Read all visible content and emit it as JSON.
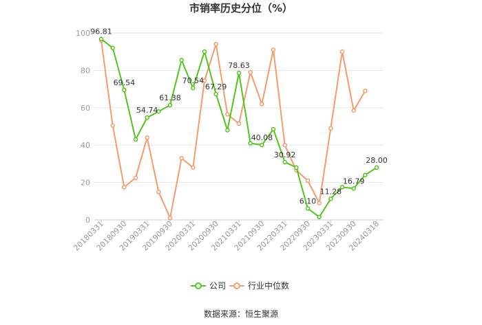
{
  "chart_data": {
    "type": "line",
    "title": "市销率历史分位（%）",
    "source": "数据来源：恒生聚源",
    "ylim": [
      0,
      100
    ],
    "yticks": [
      0,
      20,
      40,
      60,
      80,
      100
    ],
    "x": [
      "20180331",
      "20180630",
      "20180930",
      "20181231",
      "20190331",
      "20190630",
      "20190930",
      "20191231",
      "20200331",
      "20200630",
      "20200930",
      "20201231",
      "20210331",
      "20210630",
      "20210930",
      "20211231",
      "20220331",
      "20220630",
      "20220930",
      "20221231",
      "20230331",
      "20230630",
      "20230930",
      "20231231",
      "20240318"
    ],
    "xtick_labels": [
      "20180331",
      "20180930",
      "20190331",
      "20190930",
      "20200331",
      "20200930",
      "20210331",
      "20210930",
      "20220331",
      "20220930",
      "20230331",
      "20230930",
      "20240318"
    ],
    "series": [
      {
        "name": "公司",
        "color": "#52c41a",
        "values": [
          96.81,
          92.0,
          69.54,
          43.0,
          54.74,
          58.0,
          61.38,
          85.5,
          70.54,
          90.0,
          67.29,
          48.0,
          78.63,
          41.0,
          40.08,
          48.5,
          30.92,
          28.0,
          6.1,
          1.5,
          11.28,
          17.5,
          16.79,
          24.0,
          28.0
        ],
        "labels": [
          "96.81",
          "",
          "69.54",
          "",
          "54.74",
          "",
          "61.38",
          "",
          "70.54",
          "",
          "67.29",
          "",
          "78.63",
          "",
          "40.08",
          "",
          "30.92",
          "",
          "6.10",
          "",
          "11.28",
          "",
          "16.79",
          "",
          "28.00"
        ]
      },
      {
        "name": "行业中位数",
        "color": "#f59a6b",
        "values": [
          96.0,
          50.5,
          17.5,
          22.5,
          44.0,
          15.0,
          1.0,
          33.0,
          28.0,
          74.5,
          94.0,
          56.5,
          51.5,
          79.0,
          62.0,
          91.0,
          40.0,
          26.5,
          21.0,
          9.0,
          49.0,
          90.0,
          58.5,
          69.0,
          null
        ],
        "labels": []
      }
    ],
    "legend_position": "bottom-center",
    "grid": true
  }
}
